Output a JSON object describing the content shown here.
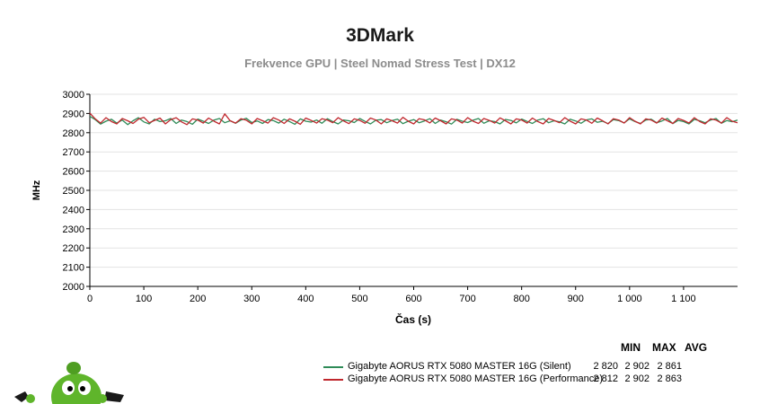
{
  "header": {
    "title": "3DMark",
    "subtitle": "Frekvence GPU | Steel Nomad Stress Test | DX12"
  },
  "legend": {
    "headers": [
      "MIN",
      "MAX",
      "AVG"
    ],
    "rows": [
      {
        "name": "Gigabyte AORUS RTX 5080 MASTER 16G (Silent)",
        "color": "#2e8b57",
        "min": "2 820",
        "max": "2 902",
        "avg": "2 861"
      },
      {
        "name": "Gigabyte AORUS RTX 5080 MASTER 16G (Performance)",
        "color": "#c0272d",
        "min": "2 812",
        "max": "2 902",
        "avg": "2 863"
      }
    ]
  },
  "chart_data": {
    "type": "line",
    "title": "3DMark",
    "subtitle": "Frekvence GPU | Steel Nomad Stress Test | DX12",
    "xlabel": "Čas (s)",
    "ylabel": "MHz",
    "xlim": [
      0,
      1200
    ],
    "ylim": [
      2000,
      3000
    ],
    "xticks": [
      0,
      100,
      200,
      300,
      400,
      500,
      600,
      700,
      800,
      900,
      1000,
      1100
    ],
    "xtick_labels": [
      "0",
      "100",
      "200",
      "300",
      "400",
      "500",
      "600",
      "700",
      "800",
      "900",
      "1 000",
      "1 100"
    ],
    "yticks": [
      2000,
      2100,
      2200,
      2300,
      2400,
      2500,
      2600,
      2700,
      2800,
      2900,
      3000
    ],
    "ytick_labels": [
      "2000",
      "2100",
      "2200",
      "2300",
      "2400",
      "2500",
      "2600",
      "2700",
      "2800",
      "2900",
      "3000"
    ],
    "grid": true,
    "legend_position": "bottom-right",
    "series": [
      {
        "name": "Gigabyte AORUS RTX 5080 MASTER 16G (Silent)",
        "color": "#2e8b57",
        "x": [
          0,
          10,
          20,
          30,
          40,
          50,
          60,
          70,
          80,
          90,
          100,
          110,
          120,
          130,
          140,
          150,
          160,
          170,
          180,
          190,
          200,
          210,
          220,
          230,
          240,
          250,
          260,
          270,
          280,
          290,
          300,
          310,
          320,
          330,
          340,
          350,
          360,
          370,
          380,
          390,
          400,
          410,
          420,
          430,
          440,
          450,
          460,
          470,
          480,
          490,
          500,
          510,
          520,
          530,
          540,
          550,
          560,
          570,
          580,
          590,
          600,
          610,
          620,
          630,
          640,
          650,
          660,
          670,
          680,
          690,
          700,
          710,
          720,
          730,
          740,
          750,
          760,
          770,
          780,
          790,
          800,
          810,
          820,
          830,
          840,
          850,
          860,
          870,
          880,
          890,
          900,
          910,
          920,
          930,
          940,
          950,
          960,
          970,
          980,
          990,
          1000,
          1010,
          1020,
          1030,
          1040,
          1050,
          1060,
          1070,
          1080,
          1090,
          1100,
          1110,
          1120,
          1130,
          1140,
          1150,
          1160,
          1170,
          1180,
          1190,
          1200
        ],
        "y": [
          2885,
          2868,
          2845,
          2860,
          2870,
          2850,
          2866,
          2842,
          2862,
          2878,
          2856,
          2846,
          2870,
          2858,
          2862,
          2874,
          2848,
          2866,
          2858,
          2844,
          2871,
          2860,
          2848,
          2866,
          2874,
          2852,
          2862,
          2849,
          2866,
          2875,
          2853,
          2861,
          2848,
          2868,
          2863,
          2850,
          2870,
          2858,
          2844,
          2872,
          2860,
          2855,
          2866,
          2849,
          2873,
          2858,
          2846,
          2866,
          2862,
          2853,
          2874,
          2859,
          2846,
          2865,
          2868,
          2852,
          2863,
          2870,
          2847,
          2860,
          2868,
          2852,
          2861,
          2873,
          2848,
          2866,
          2857,
          2845,
          2870,
          2860,
          2853,
          2865,
          2874,
          2849,
          2862,
          2858,
          2846,
          2869,
          2864,
          2851,
          2871,
          2859,
          2848,
          2866,
          2873,
          2852,
          2862,
          2857,
          2846,
          2870,
          2861,
          2849,
          2867,
          2872,
          2854,
          2860,
          2847,
          2868,
          2863,
          2851,
          2872,
          2858,
          2848,
          2866,
          2870,
          2852,
          2861,
          2874,
          2847,
          2864,
          2858,
          2846,
          2869,
          2862,
          2852,
          2866,
          2874,
          2849,
          2863,
          2857,
          2866
        ]
      },
      {
        "name": "Gigabyte AORUS RTX 5080 MASTER 16G (Performance)",
        "color": "#c0272d",
        "x": [
          0,
          10,
          20,
          30,
          40,
          50,
          60,
          70,
          80,
          90,
          100,
          110,
          120,
          130,
          140,
          150,
          160,
          170,
          180,
          190,
          200,
          210,
          220,
          230,
          240,
          250,
          260,
          270,
          280,
          290,
          300,
          310,
          320,
          330,
          340,
          350,
          360,
          370,
          380,
          390,
          400,
          410,
          420,
          430,
          440,
          450,
          460,
          470,
          480,
          490,
          500,
          510,
          520,
          530,
          540,
          550,
          560,
          570,
          580,
          590,
          600,
          610,
          620,
          630,
          640,
          650,
          660,
          670,
          680,
          690,
          700,
          710,
          720,
          730,
          740,
          750,
          760,
          770,
          780,
          790,
          800,
          810,
          820,
          830,
          840,
          850,
          860,
          870,
          880,
          890,
          900,
          910,
          920,
          930,
          940,
          950,
          960,
          970,
          980,
          990,
          1000,
          1010,
          1020,
          1030,
          1040,
          1050,
          1060,
          1070,
          1080,
          1090,
          1100,
          1110,
          1120,
          1130,
          1140,
          1150,
          1160,
          1170,
          1180,
          1190,
          1200
        ],
        "y": [
          2902,
          2872,
          2850,
          2878,
          2858,
          2846,
          2874,
          2862,
          2848,
          2870,
          2880,
          2852,
          2864,
          2876,
          2846,
          2868,
          2878,
          2856,
          2842,
          2872,
          2866,
          2850,
          2876,
          2860,
          2846,
          2898,
          2862,
          2850,
          2873,
          2865,
          2846,
          2874,
          2862,
          2850,
          2878,
          2866,
          2848,
          2872,
          2860,
          2844,
          2876,
          2864,
          2850,
          2873,
          2866,
          2852,
          2878,
          2861,
          2847,
          2872,
          2864,
          2849,
          2876,
          2866,
          2846,
          2872,
          2862,
          2850,
          2880,
          2860,
          2846,
          2873,
          2867,
          2851,
          2876,
          2862,
          2846,
          2872,
          2866,
          2850,
          2878,
          2860,
          2848,
          2874,
          2864,
          2850,
          2877,
          2862,
          2846,
          2872,
          2866,
          2850,
          2876,
          2858,
          2846,
          2874,
          2864,
          2852,
          2878,
          2860,
          2846,
          2872,
          2866,
          2849,
          2876,
          2862,
          2846,
          2873,
          2866,
          2850,
          2878,
          2860,
          2846,
          2872,
          2866,
          2850,
          2876,
          2862,
          2848,
          2874,
          2864,
          2850,
          2878,
          2858,
          2846,
          2872,
          2866,
          2850,
          2878,
          2860,
          2852
        ]
      }
    ]
  }
}
